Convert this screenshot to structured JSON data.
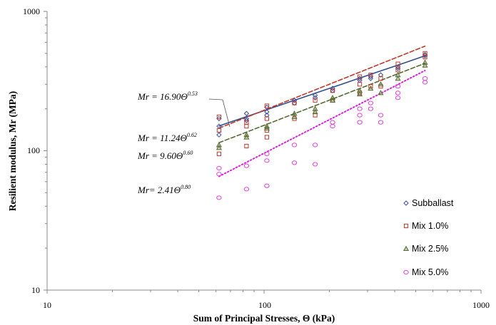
{
  "chart_data": {
    "type": "scatter",
    "xlabel": "Sum of Principal Stresses, Θ (kPa)",
    "ylabel": "Resilient modulus, Mr (MPa)",
    "xscale": "log",
    "yscale": "log",
    "xlim": [
      10,
      1000
    ],
    "ylim": [
      10,
      1000
    ],
    "x_ticks": [
      "10",
      "100",
      "1000"
    ],
    "y_ticks": [
      "10",
      "100",
      "1000"
    ],
    "grid": false,
    "legend_position": "bottom-right",
    "series": [
      {
        "name": "Subballast",
        "marker": "diamond",
        "color": "#3b4f9a",
        "trend_color": "#2f4f8f",
        "trend_style": "solid",
        "trend": {
          "a": 16.9,
          "b": 0.53
        },
        "equation": {
          "prefix": "Mr = 16.90Θ",
          "exponent": "0.53"
        },
        "points": [
          [
            62,
            170
          ],
          [
            62,
            150
          ],
          [
            62,
            130
          ],
          [
            83,
            185
          ],
          [
            83,
            170
          ],
          [
            83,
            165
          ],
          [
            103,
            205
          ],
          [
            103,
            190
          ],
          [
            103,
            180
          ],
          [
            138,
            230
          ],
          [
            138,
            220
          ],
          [
            172,
            250
          ],
          [
            172,
            240
          ],
          [
            207,
            280
          ],
          [
            207,
            270
          ],
          [
            276,
            330
          ],
          [
            276,
            320
          ],
          [
            310,
            340
          ],
          [
            310,
            330
          ],
          [
            345,
            350
          ],
          [
            414,
            400
          ],
          [
            414,
            390
          ],
          [
            552,
            490
          ],
          [
            552,
            480
          ]
        ]
      },
      {
        "name": "Mix 1.0%",
        "marker": "square",
        "color": "#c0392b",
        "trend_color": "#c0392b",
        "trend_style": "dashed",
        "trend": {
          "a": 11.24,
          "b": 0.62
        },
        "equation": {
          "prefix": "Mr = 11.24Θ",
          "exponent": "0.62"
        },
        "points": [
          [
            62,
            175
          ],
          [
            62,
            140
          ],
          [
            62,
            95
          ],
          [
            83,
            160
          ],
          [
            83,
            150
          ],
          [
            83,
            108
          ],
          [
            103,
            210
          ],
          [
            103,
            170
          ],
          [
            103,
            140
          ],
          [
            103,
            125
          ],
          [
            138,
            220
          ],
          [
            138,
            170
          ],
          [
            172,
            230
          ],
          [
            172,
            180
          ],
          [
            207,
            270
          ],
          [
            207,
            230
          ],
          [
            276,
            340
          ],
          [
            276,
            300
          ],
          [
            276,
            260
          ],
          [
            310,
            350
          ],
          [
            310,
            290
          ],
          [
            345,
            330
          ],
          [
            345,
            290
          ],
          [
            414,
            420
          ],
          [
            414,
            380
          ],
          [
            552,
            500
          ],
          [
            552,
            470
          ]
        ]
      },
      {
        "name": "Mix 2.5%",
        "marker": "triangle",
        "color": "#556b2f",
        "trend_color": "#556b2f",
        "trend_style": "dashed",
        "trend": {
          "a": 9.6,
          "b": 0.6
        },
        "equation": {
          "prefix": "Mr = 9.60Θ",
          "exponent": "0.60"
        },
        "points": [
          [
            62,
            110
          ],
          [
            62,
            105
          ],
          [
            83,
            130
          ],
          [
            83,
            125
          ],
          [
            103,
            150
          ],
          [
            103,
            145
          ],
          [
            138,
            185
          ],
          [
            138,
            175
          ],
          [
            172,
            200
          ],
          [
            172,
            190
          ],
          [
            207,
            240
          ],
          [
            207,
            230
          ],
          [
            276,
            270
          ],
          [
            276,
            255
          ],
          [
            310,
            280
          ],
          [
            345,
            300
          ],
          [
            345,
            260
          ],
          [
            414,
            350
          ],
          [
            414,
            330
          ],
          [
            552,
            430
          ],
          [
            552,
            410
          ]
        ]
      },
      {
        "name": "Mix 5.0%",
        "marker": "circle",
        "color": "#e040e0",
        "trend_color": "#e020e0",
        "trend_style": "dotted",
        "trend": {
          "a": 2.41,
          "b": 0.8
        },
        "equation": {
          "prefix": "Mr= 2.41Θ",
          "exponent": "0.80"
        },
        "points": [
          [
            62,
            75
          ],
          [
            62,
            68
          ],
          [
            62,
            46
          ],
          [
            83,
            78
          ],
          [
            83,
            53
          ],
          [
            103,
            95
          ],
          [
            103,
            85
          ],
          [
            103,
            56
          ],
          [
            138,
            110
          ],
          [
            138,
            82
          ],
          [
            172,
            110
          ],
          [
            172,
            80
          ],
          [
            207,
            160
          ],
          [
            207,
            150
          ],
          [
            276,
            200
          ],
          [
            276,
            180
          ],
          [
            276,
            160
          ],
          [
            310,
            220
          ],
          [
            310,
            200
          ],
          [
            345,
            180
          ],
          [
            345,
            160
          ],
          [
            414,
            290
          ],
          [
            414,
            260
          ],
          [
            414,
            240
          ],
          [
            552,
            330
          ],
          [
            552,
            310
          ]
        ]
      }
    ]
  }
}
